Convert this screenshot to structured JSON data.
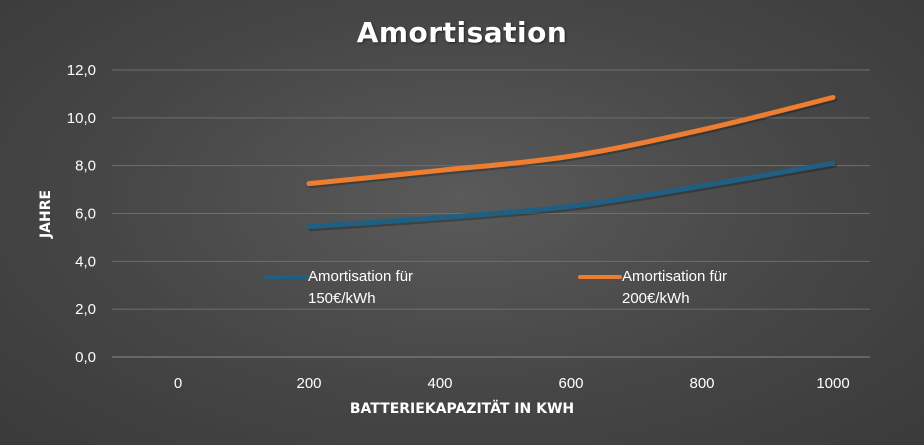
{
  "chart_data": {
    "type": "line",
    "title": "Amortisation",
    "xlabel": "BATTERIEKAPAZITÄT IN KWH",
    "ylabel": "JAHRE",
    "x": [
      0,
      200,
      400,
      600,
      800,
      1000
    ],
    "x_tick_labels": [
      "0",
      "200",
      "400",
      "600",
      "800",
      "1000"
    ],
    "y_tick_labels": [
      "0,0",
      "2,0",
      "4,0",
      "6,0",
      "8,0",
      "10,0",
      "12,0"
    ],
    "ylim": [
      0,
      12
    ],
    "grid": "horizontal",
    "legend_position": "inside-center",
    "series": [
      {
        "name": "Amortisation für 150€/kWh",
        "x": [
          200,
          400,
          600,
          800,
          1000
        ],
        "values": [
          5.45,
          5.82,
          6.3,
          7.15,
          8.1
        ],
        "color": "#1f5f82"
      },
      {
        "name": "Amortisation für 200€/kWh",
        "x": [
          200,
          400,
          600,
          800,
          1000
        ],
        "values": [
          7.25,
          7.8,
          8.4,
          9.5,
          10.85
        ],
        "color": "#ed7d31"
      }
    ]
  }
}
